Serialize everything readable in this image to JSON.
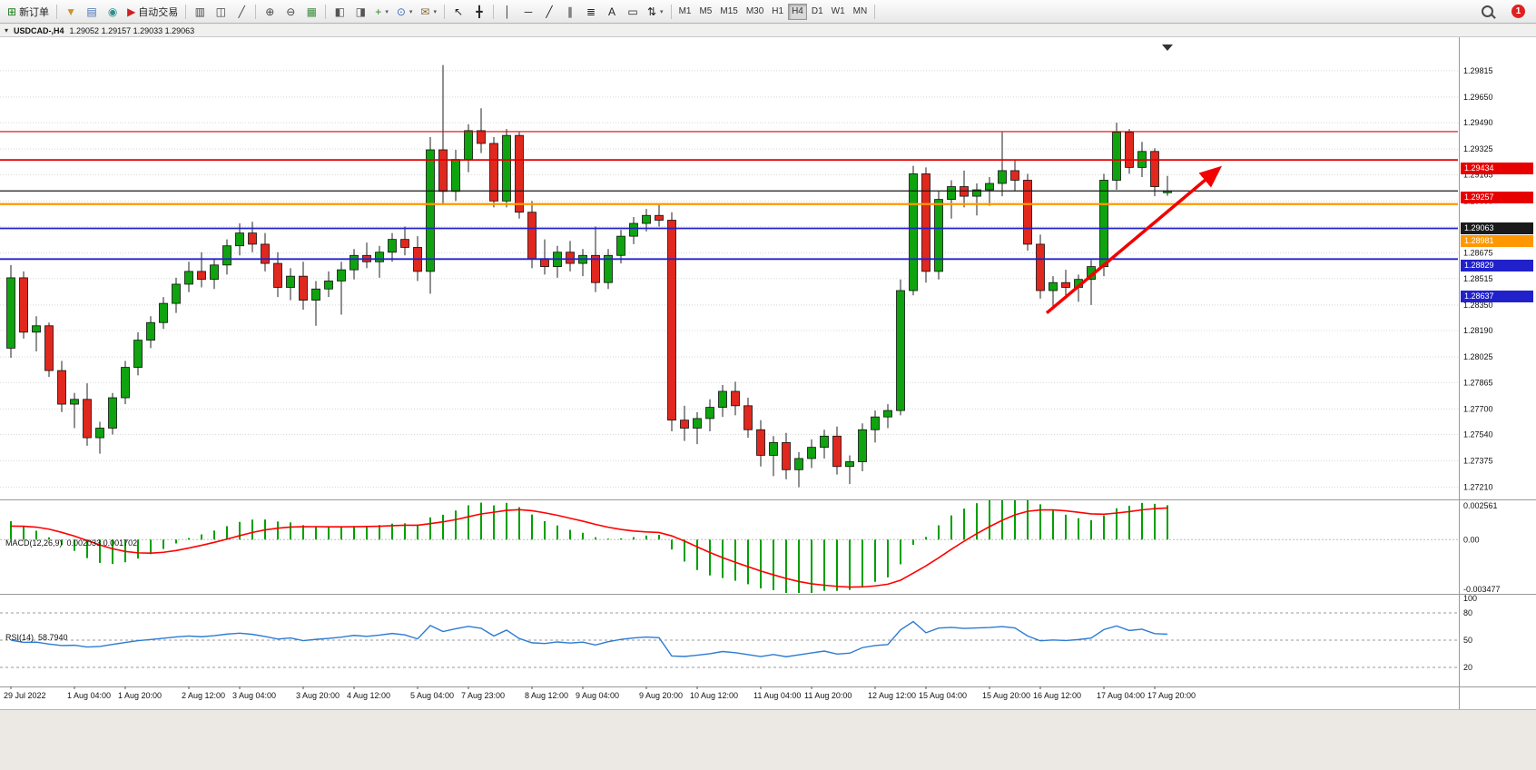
{
  "toolbar": {
    "items": [
      {
        "name": "new-order-button",
        "glyph": "⊞",
        "glyph_color": "#1a7a1a",
        "label": "新订单"
      },
      {
        "name": "separator"
      },
      {
        "name": "symbols-button",
        "glyph": "▼",
        "glyph_color": "#c9952c"
      },
      {
        "name": "print-button",
        "glyph": "▤",
        "glyph_color": "#4a6fb5"
      },
      {
        "name": "data-window-button",
        "glyph": "◉",
        "glyph_color": "#2e8f8f"
      },
      {
        "name": "autotrading-button",
        "glyph": "▶",
        "glyph_color": "#c22",
        "label": "自动交易"
      },
      {
        "name": "separator"
      },
      {
        "name": "bar-chart-button",
        "glyph": "▥",
        "glyph_color": "#444"
      },
      {
        "name": "candlestick-chart-button",
        "glyph": "◫",
        "glyph_color": "#444"
      },
      {
        "name": "line-chart-button",
        "glyph": "╱",
        "glyph_color": "#444"
      },
      {
        "name": "separator"
      },
      {
        "name": "zoom-in-button",
        "glyph": "⊕",
        "glyph_color": "#444"
      },
      {
        "name": "zoom-out-button",
        "glyph": "⊖",
        "glyph_color": "#444"
      },
      {
        "name": "tile-windows-button",
        "glyph": "▦",
        "glyph_color": "#3c8c3c"
      },
      {
        "name": "separator"
      },
      {
        "name": "arrange-windows-button",
        "glyph": "◧",
        "glyph_color": "#555"
      },
      {
        "name": "align-windows-button",
        "glyph": "◨",
        "glyph_color": "#555"
      },
      {
        "name": "indicators-button",
        "glyph": "+",
        "glyph_color": "#2a8a2a",
        "dropdown": true
      },
      {
        "name": "periods-button",
        "glyph": "⊙",
        "glyph_color": "#3a6fc0",
        "dropdown": true
      },
      {
        "name": "templates-button",
        "glyph": "✉",
        "glyph_color": "#8a6a3a",
        "dropdown": true
      },
      {
        "name": "separator"
      },
      {
        "name": "cursor-button",
        "glyph": "↖",
        "glyph_color": "#222"
      },
      {
        "name": "crosshair-button",
        "glyph": "╋",
        "glyph_color": "#222"
      },
      {
        "name": "separator"
      },
      {
        "name": "vertical-line-button",
        "glyph": "│",
        "glyph_color": "#222"
      },
      {
        "name": "horizontal-line-button",
        "glyph": "─",
        "glyph_color": "#222"
      },
      {
        "name": "trendline-button",
        "glyph": "╱",
        "glyph_color": "#222"
      },
      {
        "name": "channel-button",
        "glyph": "∥",
        "glyph_color": "#222"
      },
      {
        "name": "fibonacci-button",
        "glyph": "≣",
        "glyph_color": "#222"
      },
      {
        "name": "text-button",
        "glyph": "A",
        "glyph_color": "#222"
      },
      {
        "name": "label-button",
        "glyph": "▭",
        "glyph_color": "#222"
      },
      {
        "name": "arrows-button",
        "glyph": "⇅",
        "glyph_color": "#222",
        "dropdown": true
      },
      {
        "name": "separator"
      }
    ],
    "timeframes": {
      "items": [
        "M1",
        "M5",
        "M15",
        "M30",
        "H1",
        "H4",
        "D1",
        "W1",
        "MN"
      ],
      "active": "H4"
    },
    "notification_count": "1"
  },
  "window": {
    "title": "USDCAD-,H4",
    "ohlc_text": "1.29052 1.29157 1.29033 1.29063",
    "menu_icon": "▾"
  },
  "chart_data": {
    "type": "candlestick",
    "symbol": "USDCAD",
    "period": "H4",
    "price_min": 1.2714,
    "price_max": 1.2999,
    "price_axis": [
      "1.29815",
      "1.29650",
      "1.29490",
      "1.29325",
      "1.29165",
      "1.29000",
      "1.28840",
      "1.28675",
      "1.28515",
      "1.28350",
      "1.28190",
      "1.28025",
      "1.27865",
      "1.27700",
      "1.27540",
      "1.27375",
      "1.27210"
    ],
    "candles": [
      [
        1.2808,
        1.286,
        1.2802,
        1.2852
      ],
      [
        1.2852,
        1.2856,
        1.2814,
        1.2818
      ],
      [
        1.2818,
        1.2828,
        1.2806,
        1.2822
      ],
      [
        1.2822,
        1.2824,
        1.279,
        1.2794
      ],
      [
        1.2794,
        1.28,
        1.2768,
        1.2773
      ],
      [
        1.2773,
        1.278,
        1.2758,
        1.2776
      ],
      [
        1.2776,
        1.2786,
        1.2747,
        1.2752
      ],
      [
        1.2752,
        1.2762,
        1.2742,
        1.2758
      ],
      [
        1.2758,
        1.278,
        1.2754,
        1.2777
      ],
      [
        1.2777,
        1.28,
        1.2773,
        1.2796
      ],
      [
        1.2796,
        1.2818,
        1.2791,
        1.2813
      ],
      [
        1.2813,
        1.2828,
        1.2808,
        1.2824
      ],
      [
        1.2824,
        1.284,
        1.282,
        1.2836
      ],
      [
        1.2836,
        1.2852,
        1.283,
        1.2848
      ],
      [
        1.2848,
        1.2862,
        1.2843,
        1.2856
      ],
      [
        1.2856,
        1.2868,
        1.2846,
        1.2851
      ],
      [
        1.2851,
        1.2864,
        1.2845,
        1.286
      ],
      [
        1.286,
        1.2876,
        1.2854,
        1.2872
      ],
      [
        1.2872,
        1.2886,
        1.2866,
        1.288
      ],
      [
        1.288,
        1.2887,
        1.2868,
        1.2873
      ],
      [
        1.2873,
        1.288,
        1.2856,
        1.2861
      ],
      [
        1.2861,
        1.2868,
        1.284,
        1.2846
      ],
      [
        1.2846,
        1.2858,
        1.2838,
        1.2853
      ],
      [
        1.2853,
        1.2862,
        1.2832,
        1.2838
      ],
      [
        1.2838,
        1.285,
        1.2822,
        1.2845
      ],
      [
        1.2845,
        1.2856,
        1.284,
        1.285
      ],
      [
        1.285,
        1.2862,
        1.2829,
        1.2857
      ],
      [
        1.2857,
        1.287,
        1.2851,
        1.2866
      ],
      [
        1.2866,
        1.2874,
        1.2858,
        1.2862
      ],
      [
        1.2862,
        1.2872,
        1.2852,
        1.2868
      ],
      [
        1.2868,
        1.288,
        1.2862,
        1.2876
      ],
      [
        1.2876,
        1.2884,
        1.2866,
        1.2871
      ],
      [
        1.2871,
        1.2878,
        1.285,
        1.2856
      ],
      [
        1.2856,
        1.294,
        1.2842,
        1.2932
      ],
      [
        1.2932,
        1.2985,
        1.2898,
        1.2906
      ],
      [
        1.2906,
        1.2932,
        1.29,
        1.2926
      ],
      [
        1.2926,
        1.2948,
        1.2918,
        1.2944
      ],
      [
        1.2944,
        1.2958,
        1.293,
        1.2936
      ],
      [
        1.2936,
        1.294,
        1.2896,
        1.29
      ],
      [
        1.29,
        1.2945,
        1.2896,
        1.2941
      ],
      [
        1.2941,
        1.2943,
        1.2889,
        1.2893
      ],
      [
        1.2893,
        1.29,
        1.2858,
        1.2864
      ],
      [
        1.2864,
        1.2876,
        1.2854,
        1.2859
      ],
      [
        1.2859,
        1.2872,
        1.2852,
        1.2868
      ],
      [
        1.2868,
        1.2875,
        1.2856,
        1.2861
      ],
      [
        1.2861,
        1.287,
        1.2853,
        1.2866
      ],
      [
        1.2866,
        1.2884,
        1.2843,
        1.2849
      ],
      [
        1.2849,
        1.287,
        1.2845,
        1.2866
      ],
      [
        1.2866,
        1.2882,
        1.2861,
        1.2878
      ],
      [
        1.2878,
        1.289,
        1.2873,
        1.2886
      ],
      [
        1.2886,
        1.2895,
        1.2881,
        1.2891
      ],
      [
        1.2891,
        1.2898,
        1.2884,
        1.2888
      ],
      [
        1.2888,
        1.2893,
        1.2756,
        1.2763
      ],
      [
        1.2763,
        1.2772,
        1.275,
        1.2758
      ],
      [
        1.2758,
        1.2768,
        1.2748,
        1.2764
      ],
      [
        1.2764,
        1.2776,
        1.2756,
        1.2771
      ],
      [
        1.2771,
        1.2785,
        1.2765,
        1.2781
      ],
      [
        1.2781,
        1.2787,
        1.2766,
        1.2772
      ],
      [
        1.2772,
        1.2777,
        1.2752,
        1.2757
      ],
      [
        1.2757,
        1.2763,
        1.2734,
        1.2741
      ],
      [
        1.2741,
        1.2753,
        1.2728,
        1.2749
      ],
      [
        1.2749,
        1.2755,
        1.2726,
        1.2732
      ],
      [
        1.2732,
        1.2743,
        1.2721,
        1.2739
      ],
      [
        1.2739,
        1.2751,
        1.2733,
        1.2746
      ],
      [
        1.2746,
        1.2757,
        1.2739,
        1.2753
      ],
      [
        1.2753,
        1.2759,
        1.2729,
        1.2734
      ],
      [
        1.2734,
        1.2741,
        1.2723,
        1.2737
      ],
      [
        1.2737,
        1.2761,
        1.2731,
        1.2757
      ],
      [
        1.2757,
        1.2769,
        1.2749,
        1.2765
      ],
      [
        1.2765,
        1.2773,
        1.2758,
        1.2769
      ],
      [
        1.2769,
        1.2851,
        1.2766,
        1.2844
      ],
      [
        1.2844,
        1.2922,
        1.2841,
        1.2917
      ],
      [
        1.2917,
        1.2921,
        1.2849,
        1.2856
      ],
      [
        1.2856,
        1.2906,
        1.2851,
        1.2901
      ],
      [
        1.2901,
        1.2913,
        1.2889,
        1.2909
      ],
      [
        1.2909,
        1.2919,
        1.2896,
        1.2903
      ],
      [
        1.2903,
        1.2911,
        1.2891,
        1.2907
      ],
      [
        1.2907,
        1.2915,
        1.2897,
        1.2911
      ],
      [
        1.2911,
        1.2943,
        1.2903,
        1.2919
      ],
      [
        1.2919,
        1.2926,
        1.2906,
        1.2913
      ],
      [
        1.2913,
        1.2917,
        1.2869,
        1.2873
      ],
      [
        1.2873,
        1.2879,
        1.2839,
        1.2844
      ],
      [
        1.2844,
        1.2853,
        1.2833,
        1.2849
      ],
      [
        1.2849,
        1.2857,
        1.2841,
        1.2846
      ],
      [
        1.2846,
        1.2854,
        1.2837,
        1.2851
      ],
      [
        1.2851,
        1.2863,
        1.2835,
        1.2859
      ],
      [
        1.2859,
        1.2917,
        1.2853,
        1.2913
      ],
      [
        1.2913,
        1.2949,
        1.2907,
        1.2943
      ],
      [
        1.2943,
        1.2945,
        1.2917,
        1.2921
      ],
      [
        1.2921,
        1.2937,
        1.2915,
        1.2931
      ],
      [
        1.2931,
        1.2933,
        1.2903,
        1.2909
      ],
      [
        1.29052,
        1.29157,
        1.29033,
        1.29063
      ]
    ],
    "time_labels": [
      [
        0,
        "29 Jul 2022"
      ],
      [
        5,
        "1 Aug 04:00"
      ],
      [
        9,
        "1 Aug 20:00"
      ],
      [
        14,
        "2 Aug 12:00"
      ],
      [
        18,
        "3 Aug 04:00"
      ],
      [
        23,
        "3 Aug 20:00"
      ],
      [
        27,
        "4 Aug 12:00"
      ],
      [
        32,
        "5 Aug 04:00"
      ],
      [
        36,
        "7 Aug 23:00"
      ],
      [
        41,
        "8 Aug 12:00"
      ],
      [
        45,
        "9 Aug 04:00"
      ],
      [
        50,
        "9 Aug 20:00"
      ],
      [
        54,
        "10 Aug 12:00"
      ],
      [
        59,
        "11 Aug 04:00"
      ],
      [
        63,
        "11 Aug 20:00"
      ],
      [
        68,
        "12 Aug 12:00"
      ],
      [
        72,
        "15 Aug 04:00"
      ],
      [
        77,
        "15 Aug 20:00"
      ],
      [
        81,
        "16 Aug 12:00"
      ],
      [
        86,
        "17 Aug 04:00"
      ],
      [
        90,
        "17 Aug 20:00"
      ]
    ],
    "hlines": [
      {
        "price": 1.29434,
        "color": "#e60000",
        "w": 1.2
      },
      {
        "price": 1.29257,
        "color": "#e60000",
        "w": 1.8
      },
      {
        "price": 1.29063,
        "color": "#1a1a1a",
        "w": 1.2
      },
      {
        "price": 1.28981,
        "color": "#ff9800",
        "w": 2.2
      },
      {
        "price": 1.28829,
        "color": "#2121cc",
        "w": 1.8
      },
      {
        "price": 1.28637,
        "color": "#2121cc",
        "w": 1.8
      }
    ],
    "arrow": {
      "from_index": 81.5,
      "from_price": 1.283,
      "to_index": 95,
      "to_price": 1.292,
      "color": "#f20000"
    },
    "colors": {
      "up": "#0fa30f",
      "down": "#e0281e",
      "wick": "#222222",
      "grid": "#d8d8d8",
      "macd_hist": "#00a000",
      "macd_signal": "#ff0000",
      "rsi": "#2d7bd3"
    },
    "macd": {
      "label": "MACD(12,26,9)",
      "values_text": "0.002033 0.001702",
      "fast": 12,
      "slow": 26,
      "signal": 9,
      "scale_max": 0.002561,
      "scale_min": -0.003477,
      "axis": [
        "0.002561",
        "0.00",
        "-0.003477"
      ]
    },
    "rsi": {
      "label": "RSI(14)",
      "value_text": "58.7940",
      "period": 14,
      "levels": [
        80,
        50,
        20
      ],
      "axis_top": "100"
    }
  }
}
